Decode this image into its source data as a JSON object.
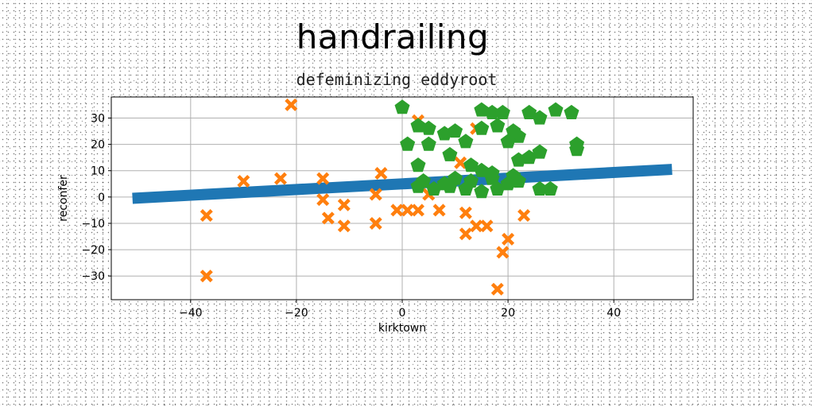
{
  "chart_data": {
    "type": "scatter",
    "title": "handrailing",
    "subtitle": "defeminizing eddyroot",
    "xlabel": "kirktown",
    "ylabel": "reconfer",
    "xlim": [
      -55,
      55
    ],
    "ylim": [
      -39,
      38
    ],
    "xticks": [
      -40,
      -20,
      0,
      20,
      40
    ],
    "yticks": [
      -30,
      -20,
      -10,
      0,
      10,
      20,
      30
    ],
    "xtick_labels": [
      "−40",
      "−20",
      "0",
      "20",
      "40"
    ],
    "ytick_labels": [
      "−30",
      "−20",
      "−10",
      "0",
      "10",
      "20",
      "30"
    ],
    "grid": true,
    "band": {
      "color": "#1f77b4",
      "x": [
        -51,
        51
      ],
      "y": [
        -0.5,
        10.5
      ]
    },
    "series": [
      {
        "marker": "x",
        "color": "#ff7f0e",
        "points": [
          [
            -21,
            35
          ],
          [
            3,
            29
          ],
          [
            14,
            26
          ],
          [
            11,
            13
          ],
          [
            -4,
            9
          ],
          [
            -15,
            7
          ],
          [
            -23,
            7
          ],
          [
            -30,
            6
          ],
          [
            -5,
            1
          ],
          [
            5,
            1
          ],
          [
            -15,
            -1
          ],
          [
            -11,
            -3
          ],
          [
            -1,
            -5
          ],
          [
            1,
            -5
          ],
          [
            3,
            -5
          ],
          [
            7,
            -5
          ],
          [
            12,
            -6
          ],
          [
            -14,
            -8
          ],
          [
            -37,
            -7
          ],
          [
            23,
            -7
          ],
          [
            -11,
            -11
          ],
          [
            -5,
            -10
          ],
          [
            14,
            -11
          ],
          [
            16,
            -11
          ],
          [
            12,
            -14
          ],
          [
            20,
            -16
          ],
          [
            19,
            -21
          ],
          [
            -37,
            -30
          ],
          [
            18,
            -35
          ]
        ]
      },
      {
        "marker": "pentagon",
        "color": "#2ca02c",
        "points": [
          [
            0,
            34
          ],
          [
            15,
            33
          ],
          [
            17,
            32
          ],
          [
            19,
            32
          ],
          [
            24,
            32
          ],
          [
            29,
            33
          ],
          [
            32,
            32
          ],
          [
            3,
            27
          ],
          [
            5,
            26
          ],
          [
            10,
            25
          ],
          [
            15,
            26
          ],
          [
            18,
            27
          ],
          [
            21,
            25
          ],
          [
            22,
            23
          ],
          [
            26,
            30
          ],
          [
            1,
            20
          ],
          [
            5,
            20
          ],
          [
            8,
            24
          ],
          [
            12,
            21
          ],
          [
            20,
            21
          ],
          [
            33,
            20
          ],
          [
            33,
            18
          ],
          [
            26,
            17
          ],
          [
            24,
            15
          ],
          [
            22,
            14
          ],
          [
            9,
            16
          ],
          [
            3,
            12
          ],
          [
            13,
            12
          ],
          [
            15,
            10
          ],
          [
            17,
            9
          ],
          [
            4,
            6
          ],
          [
            8,
            5
          ],
          [
            10,
            7
          ],
          [
            13,
            6
          ],
          [
            17,
            7
          ],
          [
            21,
            8
          ],
          [
            3,
            4
          ],
          [
            6,
            3
          ],
          [
            9,
            4
          ],
          [
            12,
            3
          ],
          [
            15,
            2
          ],
          [
            18,
            3
          ],
          [
            20,
            5
          ],
          [
            22,
            6
          ],
          [
            26,
            3
          ],
          [
            28,
            3
          ]
        ]
      }
    ]
  }
}
